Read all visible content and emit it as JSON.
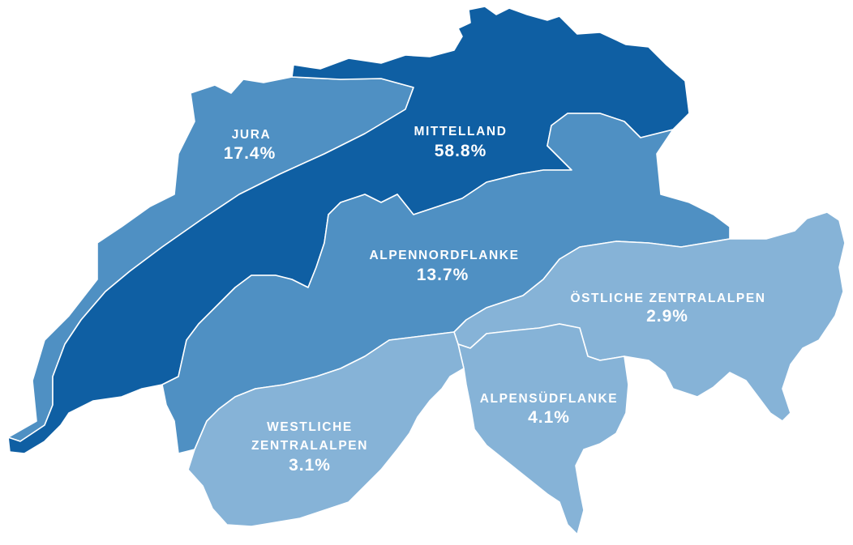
{
  "colors": {
    "mittelland": "#0F5FA3",
    "jura": "#4F90C3",
    "alpennordflanke": "#4F90C3",
    "oestliche_zentralalpen": "#86B3D7",
    "westliche_zentralalpen": "#86B3D7",
    "alpensuedflanke": "#86B3D7",
    "border": "#FFFFFF",
    "label": "#FFFFFF"
  },
  "regions": {
    "jura": {
      "name": "JURA",
      "share": "17.4%"
    },
    "mittelland": {
      "name": "MITTELLAND",
      "share": "58.8%"
    },
    "alpennordflanke": {
      "name": "ALPENNORDFLANKE",
      "share": "13.7%"
    },
    "oestliche_zentralalpen": {
      "name": "ÖSTLICHE ZENTRALALPEN",
      "share": "2.9%"
    },
    "alpensuedflanke": {
      "name": "ALPENSÜDFLANKE",
      "share": "4.1%"
    },
    "westliche_zentralalpen": {
      "name_line1": "WESTLICHE",
      "name_line2": "ZENTRALALPEN",
      "share": "3.1%"
    }
  }
}
